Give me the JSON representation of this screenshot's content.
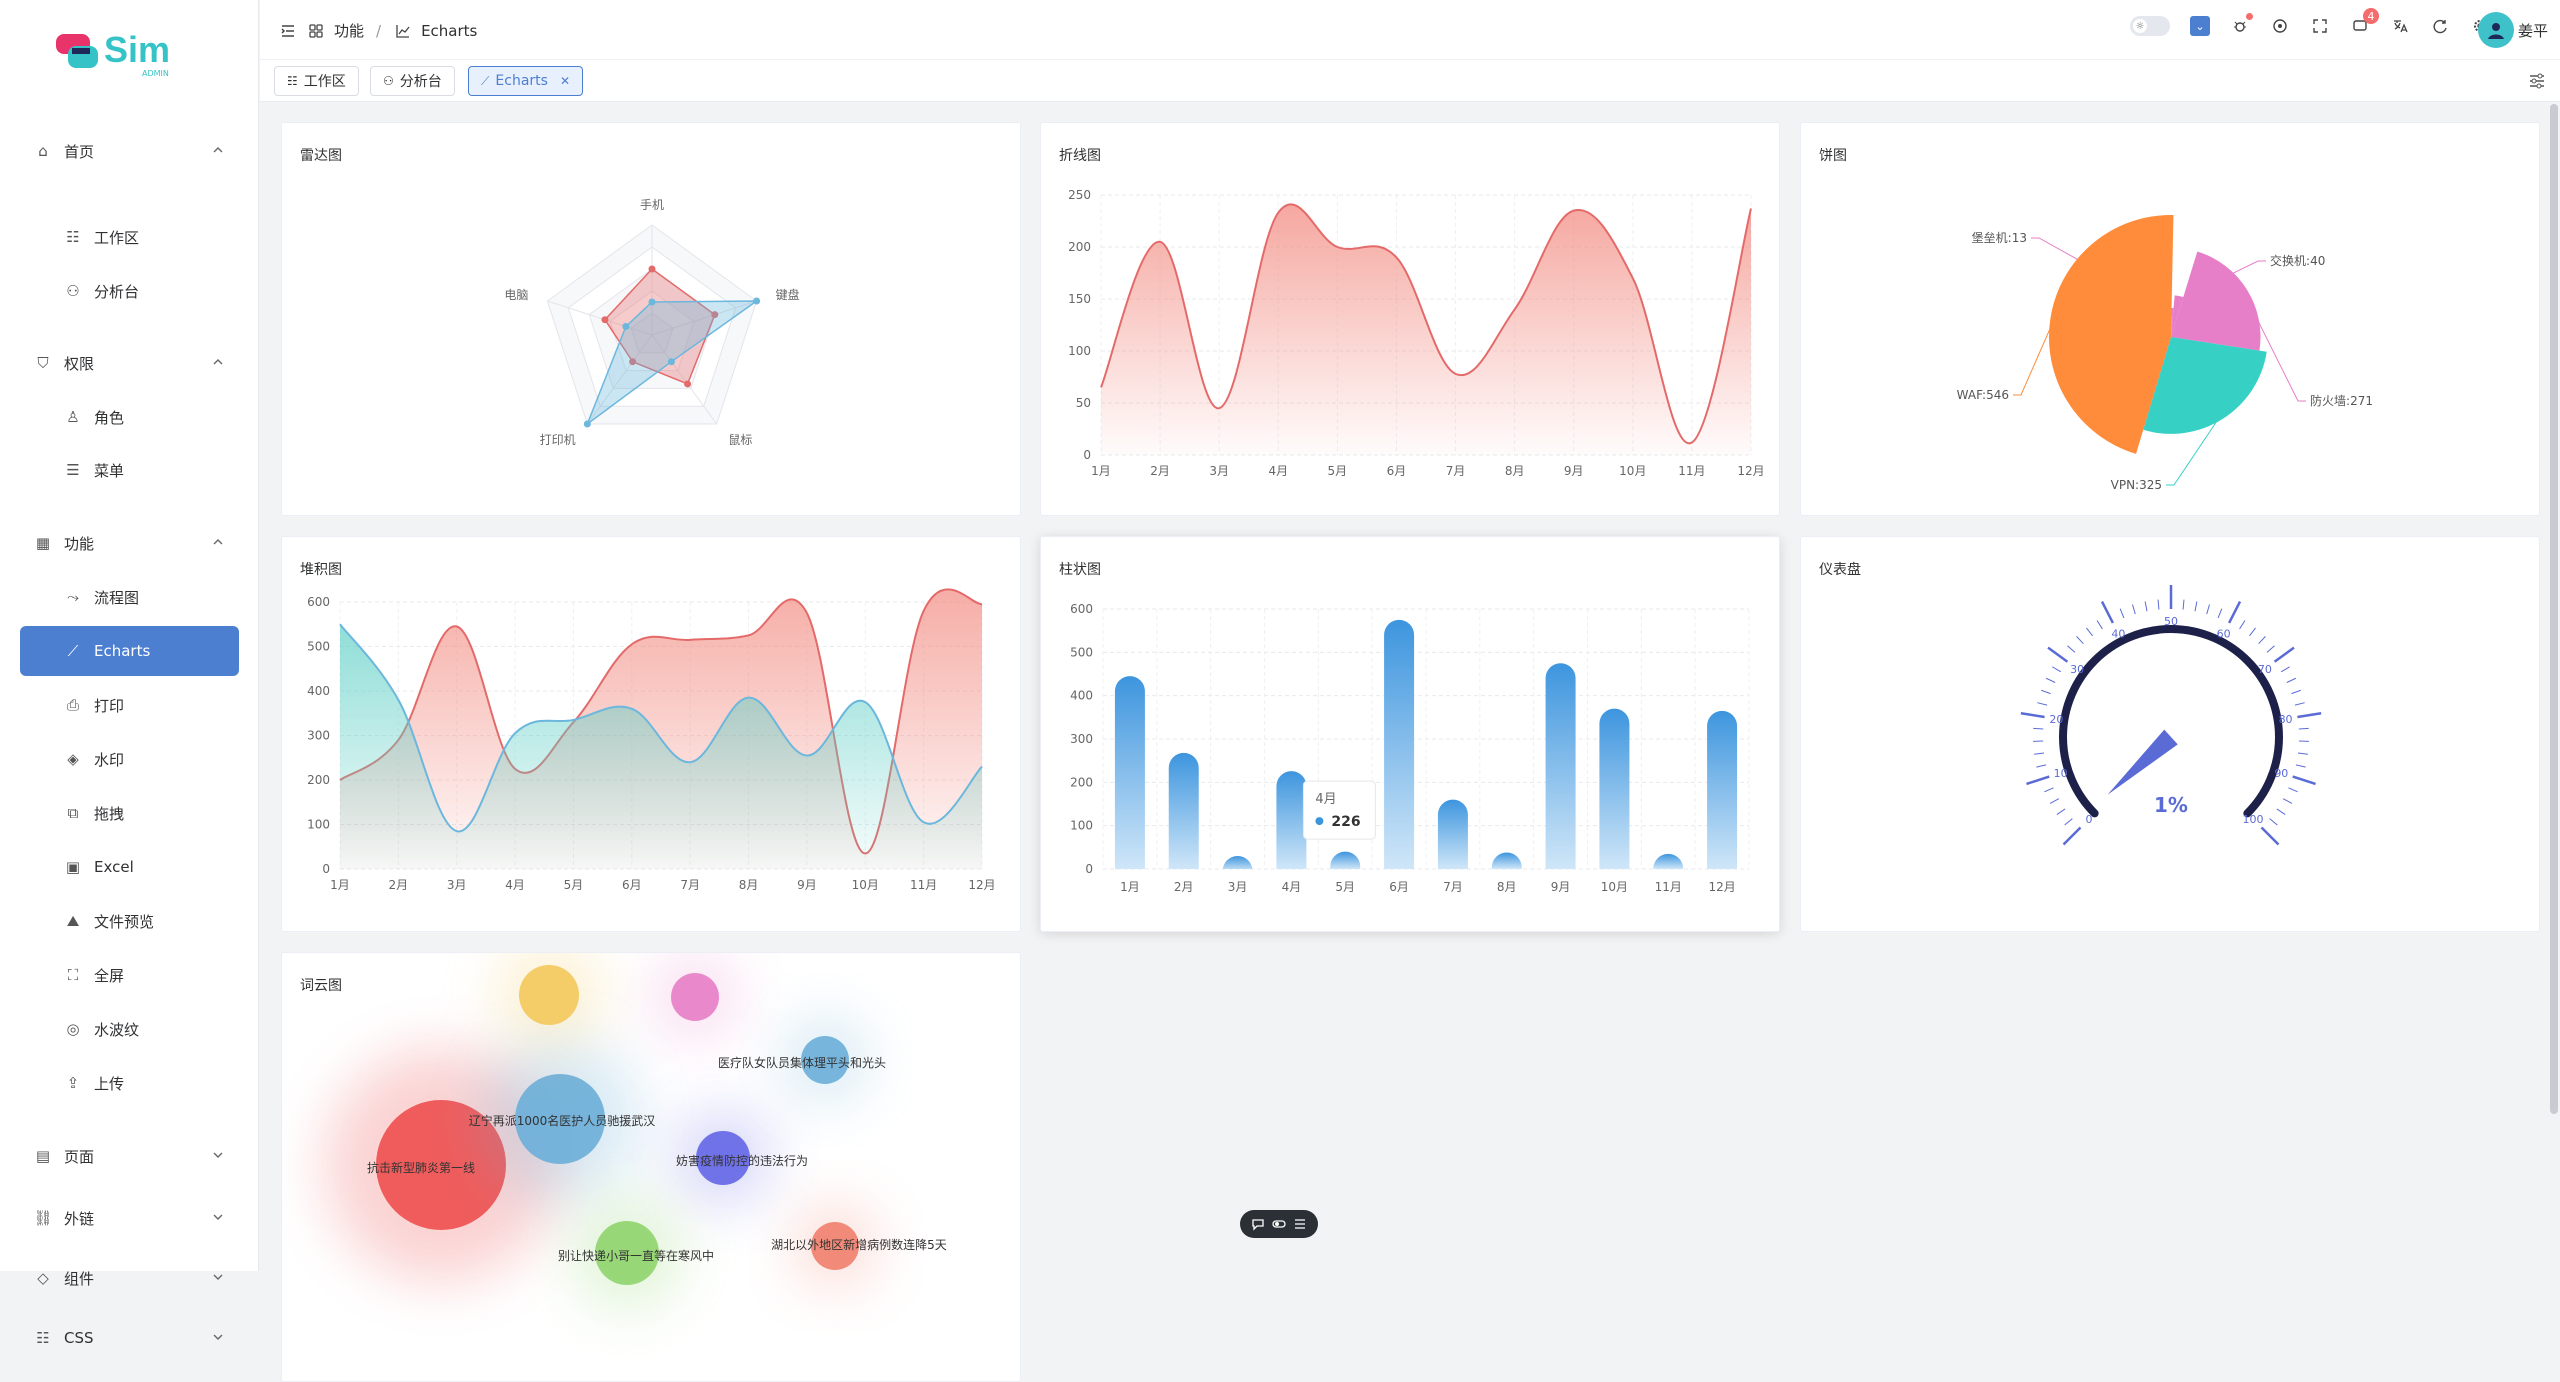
{
  "app": {
    "logo_text": "Sim",
    "logo_sub": "ADMIN"
  },
  "sidebar": {
    "items": [
      {
        "label": "首页",
        "icon": "home-icon",
        "level": "top",
        "expanded": true
      },
      {
        "label": "工作区",
        "icon": "workspace-icon",
        "level": "sub"
      },
      {
        "label": "分析台",
        "icon": "analysis-icon",
        "level": "sub"
      },
      {
        "label": "权限",
        "icon": "shield-icon",
        "level": "top",
        "expanded": true
      },
      {
        "label": "角色",
        "icon": "user-icon",
        "level": "sub"
      },
      {
        "label": "菜单",
        "icon": "menu-list-icon",
        "level": "sub"
      },
      {
        "label": "功能",
        "icon": "grid-icon",
        "level": "top",
        "expanded": true
      },
      {
        "label": "流程图",
        "icon": "flow-icon",
        "level": "sub"
      },
      {
        "label": "Echarts",
        "icon": "chart-icon",
        "level": "sub",
        "active": true
      },
      {
        "label": "打印",
        "icon": "printer-icon",
        "level": "sub"
      },
      {
        "label": "水印",
        "icon": "drop-icon",
        "level": "sub"
      },
      {
        "label": "拖拽",
        "icon": "drag-icon",
        "level": "sub"
      },
      {
        "label": "Excel",
        "icon": "excel-icon",
        "level": "sub"
      },
      {
        "label": "文件预览",
        "icon": "image-icon",
        "level": "sub"
      },
      {
        "label": "全屏",
        "icon": "fullscreen-icon",
        "level": "sub"
      },
      {
        "label": "水波纹",
        "icon": "ripple-icon",
        "level": "sub"
      },
      {
        "label": "上传",
        "icon": "upload-icon",
        "level": "sub"
      },
      {
        "label": "页面",
        "icon": "page-icon",
        "level": "top",
        "expanded": false
      },
      {
        "label": "外链",
        "icon": "link-icon",
        "level": "top",
        "expanded": false
      },
      {
        "label": "组件",
        "icon": "layers-icon",
        "level": "top",
        "expanded": false
      },
      {
        "label": "CSS",
        "icon": "css-icon",
        "level": "top",
        "expanded": false
      }
    ]
  },
  "header": {
    "breadcrumb": [
      {
        "label": "功能",
        "icon": "grid-icon"
      },
      {
        "label": "Echarts",
        "icon": "chart-icon"
      }
    ],
    "notifications": "4",
    "username": "姜平"
  },
  "tabs": [
    {
      "label": "工作区",
      "icon": "workspace-icon",
      "active": false
    },
    {
      "label": "分析台",
      "icon": "analysis-icon",
      "active": false
    },
    {
      "label": "Echarts",
      "icon": "chart-icon",
      "active": true,
      "closable": true
    }
  ],
  "cards": {
    "radar": "雷达图",
    "line": "折线图",
    "pie": "饼图",
    "stack": "堆积图",
    "bar": "柱状图",
    "gauge": "仪表盘",
    "wordcloud": "词云图"
  },
  "colors": {
    "accent": "#4d7fd1",
    "red": "#e46a6a",
    "blue": "#6bb7dd",
    "orange": "#ff8c3a",
    "teal": "#36d1c4",
    "pink": "#e77ec8",
    "navy": "#1d2149",
    "purple": "#5b6bd6"
  },
  "chart_data": [
    {
      "type": "radar",
      "indicators": [
        "手机",
        "键盘",
        "鼠标",
        "打印机",
        "电脑"
      ],
      "series": [
        {
          "values": [
            60,
            60,
            55,
            30,
            45
          ],
          "color": "#e46a6a"
        },
        {
          "values": [
            30,
            100,
            30,
            100,
            25
          ],
          "color": "#6bb7dd"
        }
      ]
    },
    {
      "type": "line",
      "categories": [
        "1月",
        "2月",
        "3月",
        "4月",
        "5月",
        "6月",
        "7月",
        "8月",
        "9月",
        "10月",
        "11月",
        "12月"
      ],
      "values": [
        65,
        205,
        45,
        233,
        200,
        190,
        78,
        140,
        235,
        170,
        12,
        237
      ],
      "ylim": [
        0,
        250
      ],
      "yticks": [
        0,
        50,
        100,
        150,
        200,
        250
      ]
    },
    {
      "type": "pie",
      "subtype": "rose",
      "slices": [
        {
          "label": "堡垒机",
          "value": 13,
          "color": "#e77ec8"
        },
        {
          "label": "交换机",
          "value": 40,
          "color": "#e77ec8"
        },
        {
          "label": "防火墙",
          "value": 271,
          "color": "#e77ec8"
        },
        {
          "label": "VPN",
          "value": 325,
          "color": "#36d1c4"
        },
        {
          "label": "WAF",
          "value": 546,
          "color": "#ff8c3a"
        }
      ]
    },
    {
      "type": "area",
      "categories": [
        "1月",
        "2月",
        "3月",
        "4月",
        "5月",
        "6月",
        "7月",
        "8月",
        "9月",
        "10月",
        "11月",
        "12月"
      ],
      "series": [
        {
          "values": [
            200,
            290,
            545,
            225,
            330,
            505,
            515,
            525,
            575,
            35,
            580,
            595
          ],
          "color": "#e46a6a"
        },
        {
          "values": [
            550,
            380,
            85,
            305,
            335,
            360,
            240,
            385,
            255,
            375,
            105,
            230
          ],
          "color": "#6bb7dd"
        }
      ],
      "ylim": [
        0,
        600
      ],
      "yticks": [
        0,
        100,
        200,
        300,
        400,
        500,
        600
      ]
    },
    {
      "type": "bar",
      "categories": [
        "1月",
        "2月",
        "3月",
        "4月",
        "5月",
        "6月",
        "7月",
        "8月",
        "9月",
        "10月",
        "11月",
        "12月"
      ],
      "values": [
        445,
        268,
        30,
        226,
        40,
        575,
        160,
        38,
        475,
        370,
        35,
        365
      ],
      "ylim": [
        0,
        600
      ],
      "yticks": [
        0,
        100,
        200,
        300,
        400,
        500,
        600
      ],
      "tooltip": {
        "category": "4月",
        "value": "226"
      }
    },
    {
      "type": "gauge",
      "min": 0,
      "max": 100,
      "ticks": [
        "0",
        "10",
        "20",
        "30",
        "40",
        "50",
        "60",
        "70",
        "80",
        "90",
        "100"
      ],
      "value": 1,
      "value_label": "1%"
    },
    {
      "type": "wordcloud",
      "words": [
        {
          "text": "抗击新型肺炎第一线",
          "size": 130,
          "color": "#ee4f4f"
        },
        {
          "text": "辽宁再派1000名医护人员驰援武汉",
          "size": 90,
          "color": "#6aaed8"
        },
        {
          "text": "妨害疫情防控的违法行为",
          "size": 54,
          "color": "#6366e6"
        },
        {
          "text": "医疗队女队员集体理平头和光头",
          "size": 48,
          "color": "#6aaed8"
        },
        {
          "text": "别让快递小哥一直等在寒风中",
          "size": 64,
          "color": "#8fd46d"
        },
        {
          "text": "湖北以外地区新增病例数连降5天",
          "size": 48,
          "color": "#f0806b"
        },
        {
          "text": "",
          "size": 60,
          "color": "#f4c95b"
        },
        {
          "text": "",
          "size": 48,
          "color": "#e77ec8"
        }
      ]
    }
  ]
}
